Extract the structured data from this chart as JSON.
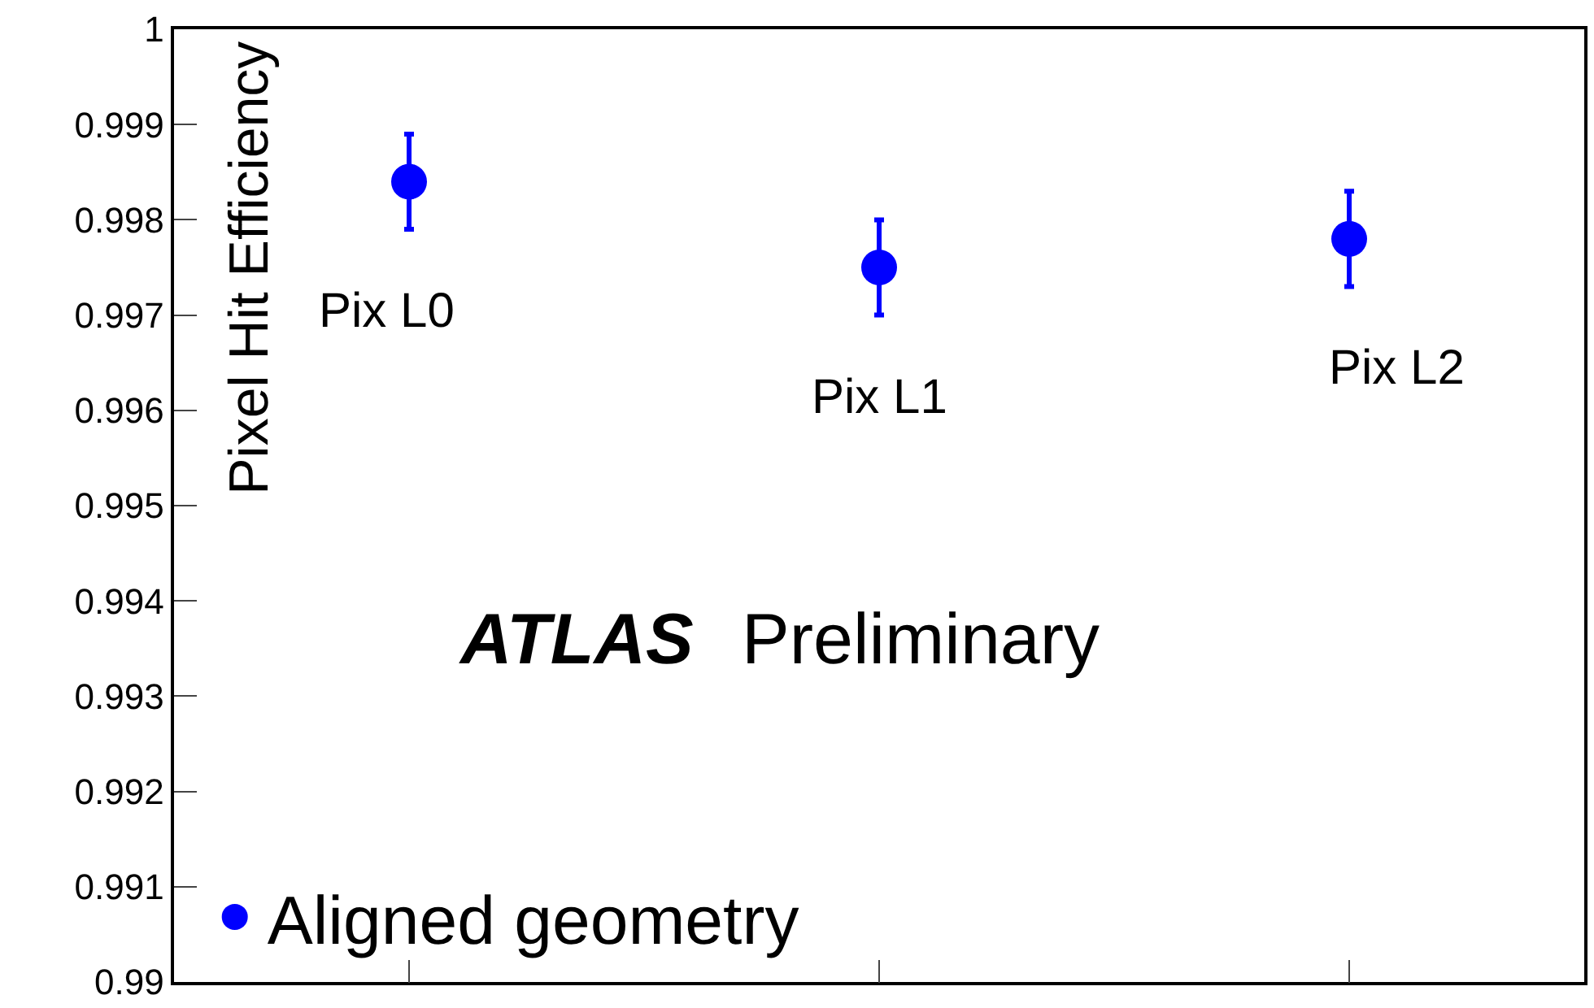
{
  "chart_data": {
    "type": "scatter",
    "ylabel": "Pixel Hit Efficiency",
    "categories": [
      "Pix L0",
      "Pix L1",
      "Pix L2"
    ],
    "series": [
      {
        "name": "Aligned geometry",
        "color": "#0000ff",
        "values": [
          0.9984,
          0.9975,
          0.9978
        ],
        "errors": [
          0.0005,
          0.0005,
          0.0005
        ]
      }
    ],
    "ylim": [
      0.99,
      1
    ],
    "yticks": [
      0.99,
      0.991,
      0.992,
      0.993,
      0.994,
      0.995,
      0.996,
      0.997,
      0.998,
      0.999,
      1
    ],
    "annotations": [
      "ATLAS",
      "Preliminary"
    ],
    "tick_labels": "y",
    "marker": "circle",
    "legend": "bottom left",
    "grid": false
  }
}
